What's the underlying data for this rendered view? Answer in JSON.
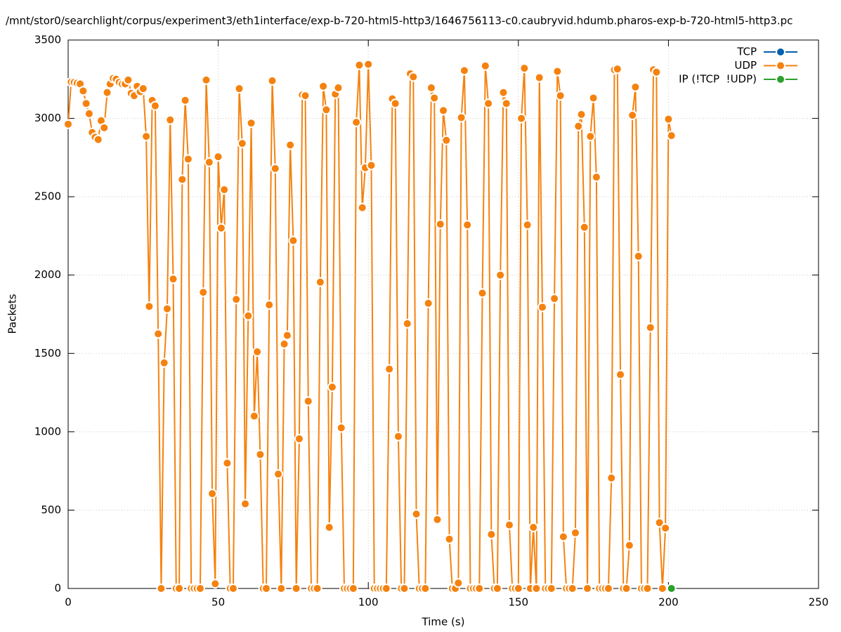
{
  "chart_data": {
    "type": "line",
    "title": "/mnt/stor0/searchlight/corpus/experiment3/eth1interface/exp-b-720-html5-http3/1646756113-c0.caubryvid.hdumb.pharos-exp-b-720-html5-http3.pc",
    "x_label": "Time (s)",
    "y_label": "Packets",
    "xlim": [
      0,
      250
    ],
    "xticks": [
      0,
      50,
      100,
      150,
      200,
      250
    ],
    "ylim": [
      0,
      3500
    ],
    "yticks": [
      0,
      500,
      1000,
      1500,
      2000,
      2500,
      3000,
      3500
    ],
    "grid": true,
    "legend": "top-right",
    "series": [
      {
        "name": "TCP",
        "color": "#0060ad",
        "x": [],
        "values": []
      },
      {
        "name": "UDP",
        "color": "#f5820f",
        "x": [
          0,
          1,
          2,
          3,
          4,
          5,
          6,
          7,
          8,
          9,
          10,
          11,
          12,
          13,
          14,
          15,
          16,
          17,
          18,
          19,
          20,
          21,
          22,
          23,
          24,
          25,
          26,
          27,
          28,
          29,
          30,
          31,
          32,
          33,
          34,
          35,
          36,
          37,
          38,
          39,
          40,
          41,
          42,
          43,
          44,
          45,
          46,
          47,
          48,
          49,
          50,
          51,
          52,
          53,
          54,
          55,
          56,
          57,
          58,
          59,
          60,
          61,
          62,
          63,
          64,
          65,
          66,
          67,
          68,
          69,
          70,
          71,
          72,
          73,
          74,
          75,
          76,
          77,
          78,
          79,
          80,
          81,
          82,
          83,
          84,
          85,
          86,
          87,
          88,
          89,
          90,
          91,
          92,
          93,
          94,
          95,
          96,
          97,
          98,
          99,
          100,
          101,
          102,
          103,
          104,
          105,
          106,
          107,
          108,
          109,
          110,
          111,
          112,
          113,
          114,
          115,
          116,
          117,
          118,
          119,
          120,
          121,
          122,
          123,
          124,
          125,
          126,
          127,
          128,
          129,
          130,
          131,
          132,
          133,
          134,
          135,
          136,
          137,
          138,
          139,
          140,
          141,
          142,
          143,
          144,
          145,
          146,
          147,
          148,
          149,
          150,
          151,
          152,
          153,
          154,
          155,
          156,
          157,
          158,
          159,
          160,
          161,
          162,
          163,
          164,
          165,
          166,
          167,
          168,
          169,
          170,
          171,
          172,
          173,
          174,
          175,
          176,
          177,
          178,
          179,
          180,
          181,
          182,
          183,
          184,
          185,
          186,
          187,
          188,
          189,
          190,
          191,
          192,
          193,
          194,
          195,
          196,
          197,
          198,
          199,
          200,
          201
        ],
        "values": [
          2963,
          3232,
          3230,
          3225,
          3220,
          3175,
          3095,
          3030,
          2910,
          2880,
          2865,
          2985,
          2940,
          3165,
          3220,
          3255,
          3250,
          3230,
          3220,
          3220,
          3245,
          3160,
          3145,
          3205,
          3170,
          3190,
          2885,
          1800,
          3115,
          3080,
          1625,
          0,
          1440,
          1785,
          2990,
          1975,
          0,
          0,
          2610,
          3115,
          2740,
          0,
          0,
          0,
          0,
          1890,
          3245,
          2720,
          605,
          30,
          2755,
          2300,
          2545,
          800,
          0,
          0,
          1845,
          3190,
          2840,
          540,
          1740,
          2970,
          1100,
          1510,
          855,
          0,
          0,
          1810,
          3240,
          2680,
          730,
          0,
          1560,
          1615,
          2830,
          2220,
          0,
          955,
          3150,
          3145,
          1195,
          0,
          0,
          0,
          1955,
          3205,
          3055,
          390,
          1285,
          3155,
          3195,
          1025,
          0,
          0,
          0,
          0,
          2975,
          3340,
          2430,
          2685,
          3345,
          2700,
          0,
          0,
          0,
          0,
          0,
          1400,
          3125,
          3095,
          970,
          0,
          0,
          1690,
          3285,
          3265,
          475,
          0,
          0,
          0,
          1820,
          3195,
          3130,
          440,
          2325,
          3050,
          2860,
          315,
          0,
          0,
          35,
          3005,
          3305,
          2320,
          0,
          0,
          0,
          0,
          1885,
          3335,
          3095,
          345,
          0,
          0,
          2000,
          3165,
          3095,
          405,
          0,
          0,
          0,
          3000,
          3320,
          2320,
          0,
          390,
          0,
          3260,
          1795,
          0,
          0,
          0,
          1850,
          3300,
          3145,
          330,
          0,
          0,
          0,
          355,
          2950,
          3025,
          2305,
          0,
          2885,
          3130,
          2625,
          0,
          0,
          0,
          0,
          705,
          3310,
          3315,
          1365,
          0,
          0,
          275,
          3020,
          3200,
          2120,
          0,
          0,
          0,
          1665,
          3310,
          3295,
          420,
          0,
          385,
          2995,
          2890
        ]
      },
      {
        "name": "IP (!TCP  !UDP)",
        "color": "#2ca02c",
        "x": [
          201
        ],
        "values": [
          0
        ]
      }
    ]
  }
}
